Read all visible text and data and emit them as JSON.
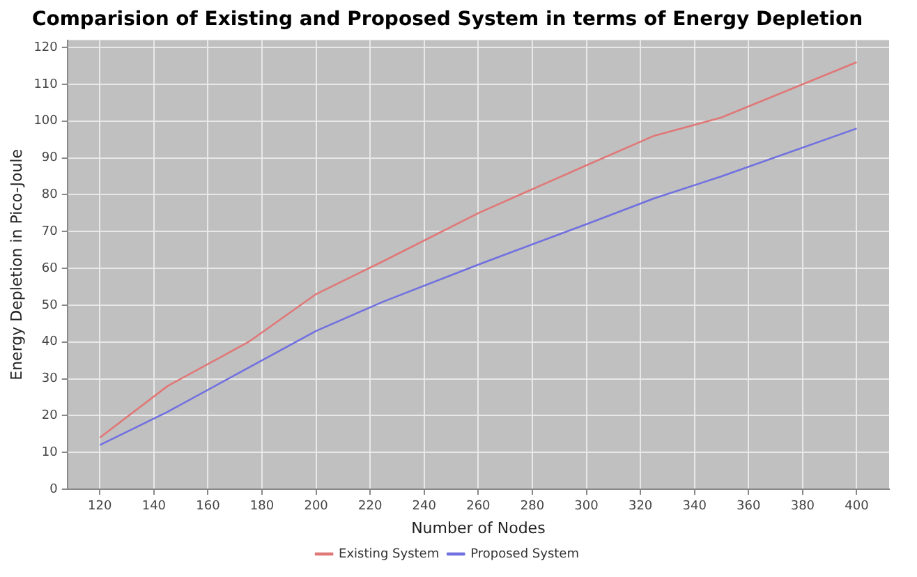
{
  "chart_data": {
    "type": "line",
    "title": "Comparision of Existing and Proposed System in terms of Energy Depletion",
    "xlabel": "Number of Nodes",
    "ylabel": "Energy Depletion in Pico-Joule",
    "x": [
      120,
      145,
      175,
      200,
      225,
      260,
      300,
      325,
      350,
      400
    ],
    "series": [
      {
        "name": "Existing System",
        "color": "#e07878",
        "values": [
          14,
          28,
          40,
          53,
          62,
          75,
          88,
          96,
          101,
          116
        ]
      },
      {
        "name": "Proposed System",
        "color": "#7070e0",
        "values": [
          12,
          21,
          33,
          43,
          51,
          61,
          72,
          79,
          85,
          98
        ]
      }
    ],
    "xlim": [
      108,
      412
    ],
    "xticks": [
      120,
      140,
      160,
      180,
      200,
      220,
      240,
      260,
      280,
      300,
      320,
      340,
      360,
      380,
      400
    ],
    "ylim": [
      0,
      122
    ],
    "yticks": [
      0,
      10,
      20,
      30,
      40,
      50,
      60,
      70,
      80,
      90,
      100,
      110,
      120
    ],
    "grid": true,
    "legend": "bottom",
    "marker": "none",
    "line_style": "solid"
  }
}
